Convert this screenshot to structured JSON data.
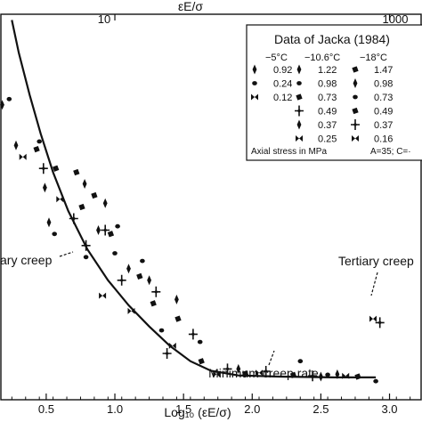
{
  "chart_data": {
    "type": "scatter",
    "xlabel": "Log₁₀ (εE/σ)",
    "top_axis_label": "εE/σ",
    "x_ticks": [
      "0.5",
      "1.0",
      "1.5",
      "2.0",
      "2.5",
      "3.0"
    ],
    "x_tick_values": [
      0.5,
      1.0,
      1.5,
      2.0,
      2.5,
      3.0
    ],
    "top_ticks": [
      "10",
      "1000"
    ],
    "top_tick_values": [
      1,
      3
    ],
    "xlim": [
      0.17,
      3.23
    ],
    "ylim": [
      0,
      1
    ],
    "grid": false,
    "curve": {
      "x": [
        0.25,
        0.3,
        0.38,
        0.46,
        0.55,
        0.66,
        0.8,
        0.95,
        1.1,
        1.25,
        1.4,
        1.55,
        1.7,
        1.9,
        2.2,
        2.6,
        2.9
      ],
      "y": [
        0.985,
        0.9,
        0.79,
        0.69,
        0.59,
        0.49,
        0.39,
        0.31,
        0.245,
        0.19,
        0.14,
        0.1,
        0.075,
        0.063,
        0.06,
        0.058,
        0.058
      ]
    },
    "series": [
      {
        "name": "−5°C",
        "marker": "diamond",
        "points": [
          [
            0.18,
            0.765
          ],
          [
            0.28,
            0.66
          ],
          [
            0.49,
            0.55
          ],
          [
            0.52,
            0.46
          ],
          [
            0.78,
            0.56
          ],
          [
            0.93,
            0.51
          ],
          [
            0.88,
            0.44
          ],
          [
            1.1,
            0.34
          ],
          [
            1.25,
            0.31
          ],
          [
            1.45,
            0.26
          ],
          [
            1.9,
            0.08
          ],
          [
            2.5,
            0.06
          ],
          [
            2.62,
            0.066
          ]
        ]
      },
      {
        "name": "−10.6°C",
        "marker": "dot",
        "points": [
          [
            0.23,
            0.78
          ],
          [
            0.45,
            0.67
          ],
          [
            0.56,
            0.43
          ],
          [
            0.79,
            0.37
          ],
          [
            1.02,
            0.45
          ],
          [
            1.0,
            0.38
          ],
          [
            1.2,
            0.36
          ],
          [
            1.34,
            0.18
          ],
          [
            1.62,
            0.15
          ],
          [
            2.35,
            0.1
          ],
          [
            2.55,
            0.065
          ],
          [
            2.9,
            0.048
          ]
        ]
      },
      {
        "name": "−18°C",
        "marker": "rhombus",
        "points": [
          [
            0.43,
            0.65
          ],
          [
            0.57,
            0.6
          ],
          [
            0.72,
            0.59
          ],
          [
            0.76,
            0.5
          ],
          [
            0.85,
            0.53
          ],
          [
            0.97,
            0.43
          ],
          [
            1.18,
            0.32
          ],
          [
            1.28,
            0.25
          ],
          [
            1.46,
            0.21
          ],
          [
            1.63,
            0.1
          ],
          [
            1.95,
            0.068
          ],
          [
            2.3,
            0.064
          ],
          [
            2.77,
            0.06
          ]
        ]
      },
      {
        "name": "−18°C",
        "marker": "cross",
        "points": [
          [
            0.48,
            0.6
          ],
          [
            0.7,
            0.47
          ],
          [
            0.79,
            0.4
          ],
          [
            0.93,
            0.44
          ],
          [
            1.05,
            0.31
          ],
          [
            1.3,
            0.28
          ],
          [
            1.38,
            0.12
          ],
          [
            1.57,
            0.17
          ],
          [
            1.82,
            0.08
          ],
          [
            2.1,
            0.074
          ],
          [
            2.44,
            0.062
          ],
          [
            2.93,
            0.2
          ]
        ]
      },
      {
        "name": "−18°C",
        "marker": "bowtie",
        "points": [
          [
            0.33,
            0.63
          ],
          [
            0.6,
            0.52
          ],
          [
            0.91,
            0.27
          ],
          [
            1.12,
            0.23
          ],
          [
            1.42,
            0.14
          ],
          [
            1.74,
            0.066
          ],
          [
            2.05,
            0.07
          ],
          [
            2.68,
            0.062
          ],
          [
            2.88,
            0.21
          ]
        ]
      }
    ],
    "annotations": [
      {
        "text": "ary creep",
        "x_value": 0.3,
        "y_value": 0.44
      },
      {
        "text": "Tertiary creep",
        "x_value": 2.92,
        "y_value": 0.34
      },
      {
        "text": "Minimum creep rate",
        "x_value": 2.17,
        "y_value": 0.01
      }
    ],
    "legend": {
      "position": "top-right",
      "title": "Data of Jacka (1984)",
      "columns": [
        {
          "header": "−5°C",
          "values": [
            "0.92",
            "0.24",
            "0.12"
          ]
        },
        {
          "header": "−10.6°C",
          "values": [
            "1.22",
            "0.98",
            "0.73",
            "0.49",
            "0.37",
            "0.25"
          ]
        },
        {
          "header": "−18°C",
          "values": [
            "1.47",
            "0.98",
            "0.73",
            "0.49",
            "0.37",
            "0.16"
          ]
        }
      ],
      "footer_left": "Axial stress in MPa",
      "footer_right": "A=35; C=·"
    }
  }
}
